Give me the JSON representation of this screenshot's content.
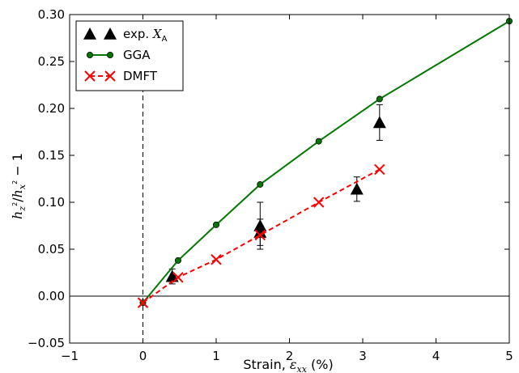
{
  "chart_data": {
    "type": "line",
    "xlabel": "Strain, ε_xx (%)",
    "ylabel": "h_z²/h_x² − 1",
    "xlim": [
      -1,
      5
    ],
    "ylim": [
      -0.05,
      0.3
    ],
    "xticks": [
      -1,
      0,
      1,
      2,
      3,
      4,
      5
    ],
    "xtick_labels": [
      "−1",
      "0",
      "1",
      "2",
      "3",
      "4",
      "5"
    ],
    "yticks": [
      -0.05,
      0.0,
      0.05,
      0.1,
      0.15,
      0.2,
      0.25,
      0.3
    ],
    "ytick_labels": [
      "−0.05",
      "0.00",
      "0.05",
      "0.10",
      "0.15",
      "0.20",
      "0.25",
      "0.30"
    ],
    "grid": false,
    "legend_position": "top-left",
    "reference_lines": [
      {
        "orientation": "horizontal",
        "value": 0,
        "style": "solid"
      },
      {
        "orientation": "vertical",
        "value": 0,
        "style": "dashed"
      }
    ],
    "series": [
      {
        "name": "exp. X_A",
        "marker": "triangle",
        "color": "#000000",
        "x": [
          0.4,
          1.6,
          1.6,
          2.92,
          3.23
        ],
        "y": [
          0.021,
          0.075,
          0.068,
          0.114,
          0.185
        ],
        "yerr": [
          0.008,
          0.025,
          0.014,
          0.013,
          0.019
        ]
      },
      {
        "name": "GGA",
        "marker": "circle",
        "line": "solid",
        "color": "#007a00",
        "x": [
          0.0,
          0.48,
          1.0,
          1.6,
          2.4,
          3.23,
          5.0
        ],
        "y": [
          -0.007,
          0.038,
          0.076,
          0.119,
          0.165,
          0.21,
          0.293
        ]
      },
      {
        "name": "DMFT",
        "marker": "x",
        "line": "dashed",
        "color": "#ff0000",
        "x": [
          0.0,
          0.48,
          1.0,
          1.6,
          2.4,
          3.23
        ],
        "y": [
          -0.007,
          0.02,
          0.039,
          0.065,
          0.1,
          0.135
        ]
      }
    ]
  },
  "legend": {
    "entries": [
      {
        "prefix": "exp. ",
        "math": "X",
        "sub": "A"
      },
      {
        "prefix": "GGA",
        "math": "",
        "sub": ""
      },
      {
        "prefix": "DMFT",
        "math": "",
        "sub": ""
      }
    ]
  },
  "axes": {
    "xlabel_prefix": "Strain, ",
    "xlabel_math": "ε",
    "xlabel_sub": "xx",
    "xlabel_suffix": " (%)",
    "ylabel_math_h1": "h",
    "ylabel_sub1": "z",
    "ylabel_sup": "2",
    "ylabel_slash": "/",
    "ylabel_math_h2": "h",
    "ylabel_sub2": "x",
    "ylabel_tail": " − 1"
  }
}
